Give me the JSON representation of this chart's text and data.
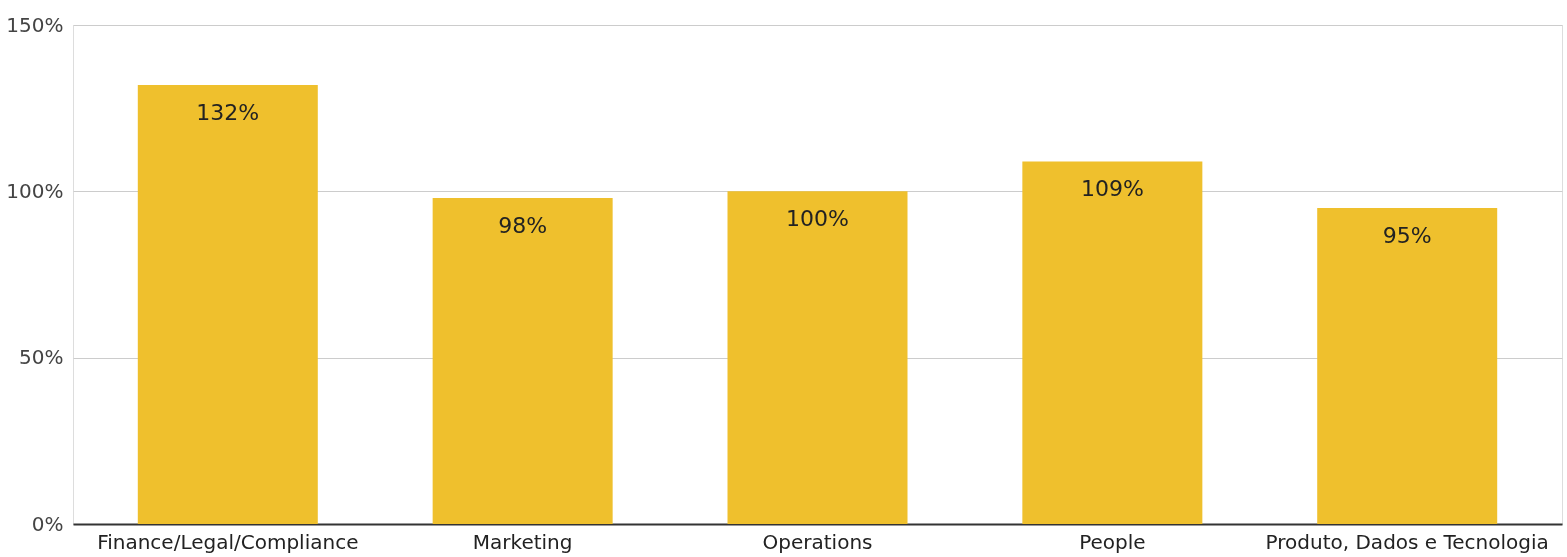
{
  "chart_data": {
    "type": "bar",
    "categories": [
      "Finance/Legal/Compliance",
      "Marketing",
      "Operations",
      "People",
      "Produto, Dados e Tecnologia"
    ],
    "values": [
      132,
      98,
      100,
      109,
      95
    ],
    "value_labels": [
      "132%",
      "98%",
      "100%",
      "109%",
      "95%"
    ],
    "color": "#efc02d",
    "ylim": [
      0,
      150
    ],
    "yticks": [
      {
        "value": 0,
        "label": "0%"
      },
      {
        "value": 50,
        "label": "50%"
      },
      {
        "value": 100,
        "label": "100%"
      },
      {
        "value": 150,
        "label": "150%"
      }
    ],
    "grid": "y"
  }
}
